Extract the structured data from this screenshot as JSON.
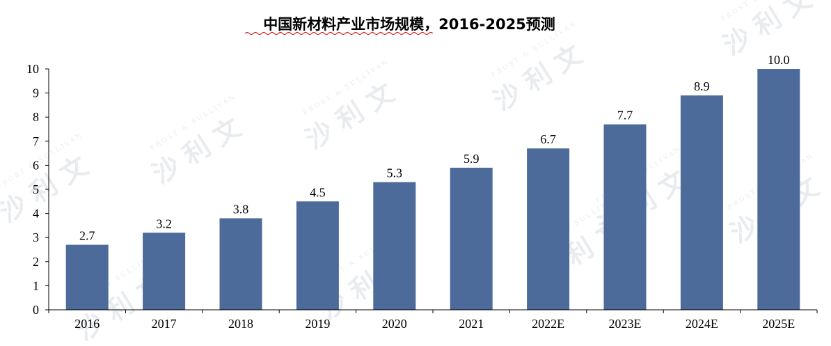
{
  "chart_data": {
    "type": "bar",
    "title": "中国新材料产业市场规模，2016-2025预测",
    "categories": [
      "2016",
      "2017",
      "2018",
      "2019",
      "2020",
      "2021",
      "2022E",
      "2023E",
      "2024E",
      "2025E"
    ],
    "values": [
      2.7,
      3.2,
      3.8,
      4.5,
      5.3,
      5.9,
      6.7,
      7.7,
      8.9,
      10.0
    ],
    "data_labels": [
      "2.7",
      "3.2",
      "3.8",
      "4.5",
      "5.3",
      "5.9",
      "6.7",
      "7.7",
      "8.9",
      "10.0"
    ],
    "y_ticks": [
      "0",
      "1",
      "2",
      "3",
      "4",
      "5",
      "6",
      "7",
      "8",
      "9",
      "10"
    ],
    "ylim": [
      0,
      10
    ],
    "xlabel": "",
    "ylabel": "",
    "grid": false,
    "legend": "none",
    "bar_color": "#4c6a9a"
  },
  "watermark": {
    "cn_text": "沙 利 文",
    "en_text": "FROST & SULLIVAN"
  }
}
